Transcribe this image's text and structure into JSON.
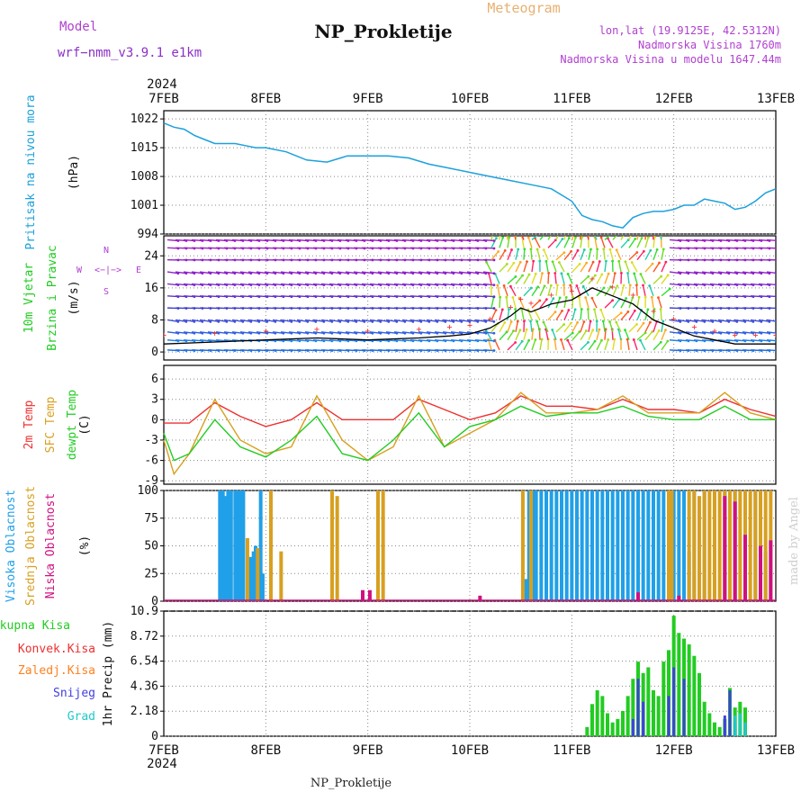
{
  "header": {
    "model_label": "Model",
    "model_name": "wrf−nmm_v3.9.1  e1km",
    "title": "NP_Prokletije",
    "subtitle": "Meteogram",
    "coords": "lon,lat (19.9125E, 42.5312N)",
    "altitude": "Nadmorska Visina 1760m",
    "model_altitude": "Nadmorska Visina u modelu 1647.44m",
    "footer_station": "NP_Prokletije",
    "watermark": "made by Angel"
  },
  "colors": {
    "pressure": "#1ca0dc",
    "temp2m": "#ee3030",
    "sfctemp": "#d8a020",
    "dewpt": "#22cc22",
    "high_cloud": "#20a0e8",
    "mid_cloud": "#d8a020",
    "low_cloud": "#d01080",
    "total_precip": "#22cc22",
    "conv_precip": "#ee3030",
    "frozen_precip": "#ff8020",
    "snow": "#4040e0",
    "graupel": "#20c8c8",
    "purple_text": "#b040d0",
    "wind_speed_line": "#000000",
    "gust_marks": "#ee3030"
  },
  "chart_data": [
    {
      "type": "line",
      "panel": "pressure",
      "ylabel_lines": [
        "Pritisak na nivou mora"
      ],
      "unit": "(hPa)",
      "ylim": [
        994,
        1024
      ],
      "yticks": [
        994,
        1001,
        1008,
        1015,
        1022
      ],
      "x_days": [
        0,
        0.1,
        0.2,
        0.3,
        0.4,
        0.5,
        0.6,
        0.7,
        0.8,
        0.9,
        1.0,
        1.2,
        1.4,
        1.6,
        1.8,
        2.0,
        2.2,
        2.4,
        2.6,
        2.8,
        3.0,
        3.2,
        3.4,
        3.6,
        3.8,
        4.0,
        4.1,
        4.2,
        4.3,
        4.4,
        4.5,
        4.6,
        4.7,
        4.8,
        4.9,
        5.0,
        5.1,
        5.2,
        5.3,
        5.4,
        5.5,
        5.6,
        5.7,
        5.8,
        5.9,
        6.0
      ],
      "values": [
        1021,
        1020,
        1019.5,
        1018,
        1017,
        1016,
        1016,
        1016,
        1015.5,
        1015,
        1015,
        1014,
        1012,
        1011.5,
        1013,
        1013,
        1013,
        1012.5,
        1011,
        1010,
        1009,
        1008,
        1007,
        1006,
        1005,
        1002,
        998.5,
        997.5,
        997,
        996,
        995.5,
        998,
        999,
        999.5,
        999.5,
        1000,
        1001,
        1001,
        1002.5,
        1002,
        1001.5,
        1000,
        1000.5,
        1002,
        1004,
        1005
      ]
    },
    {
      "type": "line",
      "panel": "wind",
      "ylabel_lines": [
        "10m Vjetar",
        "Brzina i Pravac"
      ],
      "unit": "(m/s)",
      "ylim": [
        -2,
        29
      ],
      "yticks": [
        0,
        8,
        16,
        24
      ],
      "compass": [
        "N",
        "E",
        "S",
        "W",
        "<−|−>"
      ],
      "series": [
        {
          "name": "wind_speed",
          "x_days": [
            0,
            0.5,
            1.0,
            1.5,
            2.0,
            2.5,
            2.8,
            3.0,
            3.2,
            3.4,
            3.5,
            3.6,
            3.8,
            4.0,
            4.2,
            4.4,
            4.6,
            4.8,
            5.0,
            5.2,
            5.4,
            5.6,
            5.8,
            6.0
          ],
          "values": [
            2,
            2.5,
            3,
            3.5,
            3,
            3.5,
            4,
            4.5,
            6,
            9,
            11,
            10,
            12,
            13,
            16,
            14,
            12,
            8,
            6,
            4,
            3,
            2,
            2,
            2
          ]
        }
      ]
    },
    {
      "type": "line",
      "panel": "temperature",
      "ylabel_lines": [
        "2m Temp",
        "SFC Temp",
        "dewpt Temp"
      ],
      "unit": "(C)",
      "ylim": [
        -9.5,
        8
      ],
      "yticks": [
        -9,
        -6,
        -3,
        0,
        3,
        6
      ],
      "series": [
        {
          "name": "2m Temp",
          "x_days": [
            0,
            0.25,
            0.5,
            0.75,
            1.0,
            1.25,
            1.5,
            1.75,
            2.0,
            2.25,
            2.5,
            2.75,
            3.0,
            3.25,
            3.5,
            3.75,
            4.0,
            4.25,
            4.5,
            4.75,
            5.0,
            5.25,
            5.5,
            5.75,
            6.0
          ],
          "values": [
            -0.5,
            -0.5,
            2.5,
            0.5,
            -1,
            0,
            2.5,
            0,
            0,
            0,
            3,
            1.5,
            0,
            1,
            3.5,
            2,
            2,
            1.5,
            3,
            1.5,
            1.5,
            1,
            3,
            1.5,
            0.5
          ]
        },
        {
          "name": "SFC Temp",
          "x_days": [
            0,
            0.1,
            0.25,
            0.5,
            0.75,
            1.0,
            1.25,
            1.5,
            1.75,
            2.0,
            2.25,
            2.5,
            2.75,
            3.0,
            3.25,
            3.5,
            3.75,
            4.0,
            4.25,
            4.5,
            4.75,
            5.0,
            5.25,
            5.5,
            5.75,
            6.0
          ],
          "values": [
            -3,
            -8,
            -5,
            3,
            -3,
            -5,
            -4,
            3.5,
            -3,
            -6,
            -4,
            3.5,
            -4,
            -2,
            0,
            4,
            1,
            1,
            1.5,
            3.5,
            1,
            1,
            1,
            4,
            1,
            0
          ]
        },
        {
          "name": "dewpt Temp",
          "x_days": [
            0,
            0.1,
            0.25,
            0.5,
            0.75,
            1.0,
            1.25,
            1.5,
            1.75,
            2.0,
            2.25,
            2.5,
            2.75,
            3.0,
            3.25,
            3.5,
            3.75,
            4.0,
            4.25,
            4.5,
            4.75,
            5.0,
            5.25,
            5.5,
            5.75,
            6.0
          ],
          "values": [
            -2,
            -6,
            -5,
            0,
            -4,
            -5.5,
            -3,
            0.5,
            -5,
            -6,
            -3,
            1,
            -4,
            -1,
            0,
            2,
            0.5,
            1,
            1,
            2,
            0.5,
            0,
            0,
            2,
            0,
            0
          ]
        }
      ]
    },
    {
      "type": "bar",
      "panel": "clouds",
      "ylabel_lines": [
        "Visoka Oblacnost",
        "Srednja Oblacnost",
        "Niska Oblacnost"
      ],
      "unit": "(%)",
      "ylim": [
        0,
        100
      ],
      "yticks": [
        0,
        25,
        50,
        75,
        100
      ],
      "series": [
        {
          "name": "Visoka Oblacnost",
          "x_days": [
            0.55,
            0.58,
            0.6,
            0.63,
            0.66,
            0.7,
            0.72,
            0.75,
            0.78,
            0.85,
            0.88,
            0.9,
            0.95,
            0.97,
            3.55,
            3.58,
            3.62,
            3.65,
            3.7,
            3.75,
            3.8,
            3.85,
            3.9,
            3.95,
            4.0,
            4.05,
            4.1,
            4.15,
            4.2,
            4.25,
            4.3,
            4.35,
            4.4,
            4.45,
            4.5,
            4.55,
            4.6,
            4.65,
            4.7,
            4.75,
            4.8,
            4.85,
            4.9,
            4.95,
            5.0,
            5.05,
            5.1,
            5.15,
            5.2,
            5.3,
            5.4,
            5.5,
            5.6,
            5.7,
            5.8,
            5.9
          ],
          "values": [
            100,
            100,
            95,
            100,
            100,
            100,
            100,
            100,
            100,
            40,
            45,
            50,
            100,
            25,
            20,
            100,
            100,
            100,
            100,
            100,
            100,
            100,
            100,
            100,
            100,
            100,
            100,
            100,
            100,
            100,
            100,
            100,
            100,
            100,
            100,
            100,
            100,
            100,
            100,
            100,
            100,
            100,
            100,
            100,
            100,
            100,
            100,
            45,
            100,
            100,
            100,
            100,
            100,
            100,
            100,
            45
          ]
        },
        {
          "name": "Srednja Oblacnost",
          "x_days": [
            0.82,
            0.92,
            1.05,
            1.15,
            1.65,
            1.7,
            2.1,
            2.15,
            3.52,
            3.6,
            4.95,
            4.98,
            5.15,
            5.2,
            5.25,
            5.3,
            5.35,
            5.4,
            5.45,
            5.5,
            5.55,
            5.6,
            5.65,
            5.7,
            5.75,
            5.8,
            5.85,
            5.9,
            5.95
          ],
          "values": [
            57,
            48,
            100,
            45,
            100,
            95,
            100,
            100,
            100,
            100,
            100,
            100,
            100,
            100,
            95,
            100,
            100,
            100,
            100,
            100,
            100,
            100,
            100,
            100,
            100,
            100,
            100,
            100,
            100
          ]
        },
        {
          "name": "Niska Oblacnost",
          "x_days": [
            1.95,
            2.02,
            3.1,
            4.65,
            5.05,
            5.5,
            5.6,
            5.7,
            5.85,
            5.95
          ],
          "values": [
            10,
            10,
            5,
            8,
            5,
            95,
            90,
            60,
            50,
            55
          ]
        }
      ]
    },
    {
      "type": "bar",
      "panel": "precip",
      "ylabel_lines": [
        "Ukupna Kisa",
        "Konvek.Kisa",
        "Zaledj.Kisa",
        "Snijeg",
        "Grad"
      ],
      "unit": "1hr Precip (mm)",
      "ylim": [
        0,
        10.9
      ],
      "yticks": [
        0,
        2.18,
        4.36,
        6.54,
        8.72,
        10.9
      ],
      "series": [
        {
          "name": "Ukupna Kisa",
          "x_days": [
            4.15,
            4.2,
            4.25,
            4.3,
            4.35,
            4.4,
            4.45,
            4.5,
            4.55,
            4.6,
            4.65,
            4.7,
            4.75,
            4.8,
            4.85,
            4.9,
            4.95,
            5.0,
            5.05,
            5.1,
            5.15,
            5.2,
            5.25,
            5.3,
            5.35,
            5.4,
            5.45,
            5.5,
            5.55,
            5.6,
            5.65,
            5.7
          ],
          "values": [
            0.8,
            2.8,
            4,
            3.5,
            2,
            1.2,
            1.5,
            2.2,
            3.5,
            5,
            6.5,
            5.5,
            6,
            4,
            3.5,
            6.5,
            7.5,
            10.5,
            9,
            8.5,
            8,
            7,
            5.5,
            3,
            2,
            1.2,
            0.8,
            1.5,
            4.2,
            2.5,
            3,
            2.5
          ]
        },
        {
          "name": "Snijeg",
          "x_days": [
            4.6,
            4.65,
            4.7,
            4.95,
            5.0,
            5.1,
            5.5,
            5.55,
            5.6
          ],
          "values": [
            1.5,
            5,
            3,
            3.5,
            6,
            5,
            1.8,
            4,
            1.2
          ]
        },
        {
          "name": "Grad",
          "x_days": [
            5.6,
            5.65,
            5.7
          ],
          "values": [
            1.8,
            2,
            1.2
          ]
        }
      ]
    }
  ],
  "axes": {
    "year": "2024",
    "day_labels": [
      "7FEB",
      "8FEB",
      "9FEB",
      "10FEB",
      "11FEB",
      "12FEB",
      "13FEB"
    ]
  }
}
